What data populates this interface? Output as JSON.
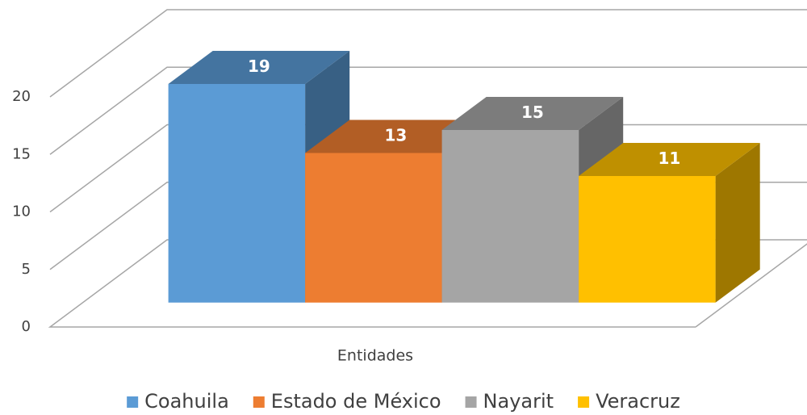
{
  "chart_data": {
    "type": "bar3d",
    "categories": [
      "Entidades"
    ],
    "series": [
      {
        "name": "Coahuila",
        "color": "#5b9bd5",
        "values": [
          19
        ]
      },
      {
        "name": "Estado de México",
        "color": "#ed7d31",
        "values": [
          13
        ]
      },
      {
        "name": "Nayarit",
        "color": "#a5a5a5",
        "values": [
          15
        ]
      },
      {
        "name": "Veracruz",
        "color": "#ffc000",
        "values": [
          11
        ]
      }
    ],
    "ylim": [
      0,
      20
    ],
    "yticks": [
      0,
      5,
      10,
      15,
      20
    ],
    "grid": true,
    "legend": "bottom"
  }
}
